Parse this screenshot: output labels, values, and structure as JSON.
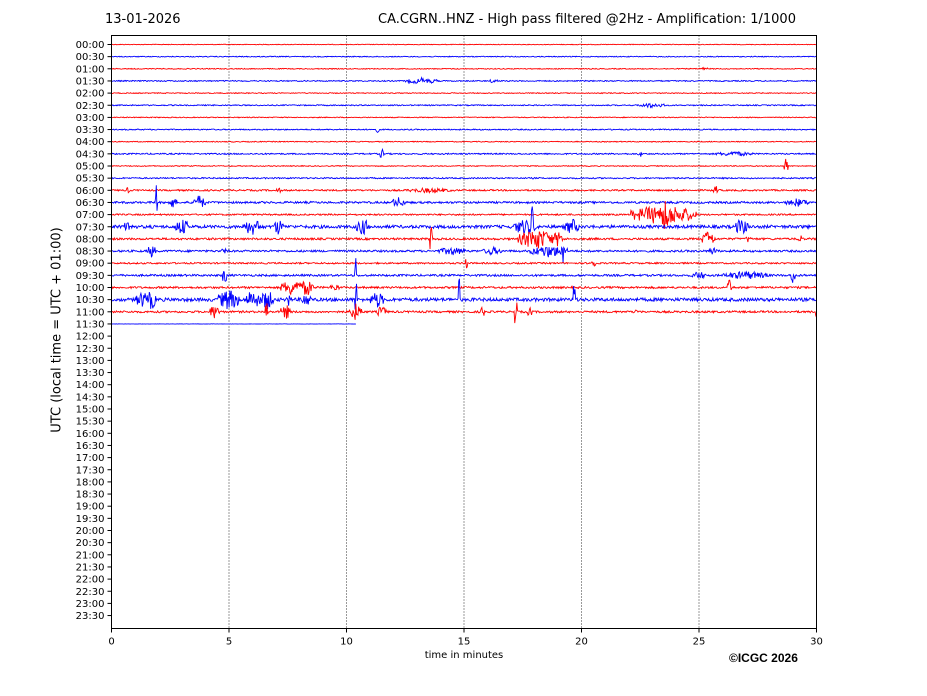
{
  "header": {
    "date": "13-01-2026",
    "title": "CA.CGRN..HNZ - High pass filtered @2Hz - Amplification: 1/1000"
  },
  "footer": {
    "copyright": "©ICGC 2026"
  },
  "colors": {
    "odd_trace": "#ff0000",
    "even_trace": "#0000ff",
    "grid": "#000000"
  },
  "chart_data": {
    "type": "line",
    "title": "CA.CGRN..HNZ - High pass filtered @2Hz - Amplification: 1/1000",
    "xlabel": "time in minutes",
    "ylabel": "UTC (local time = UTC + 01:00)",
    "xlim": [
      0,
      30
    ],
    "x_ticks": [
      0,
      5,
      10,
      15,
      20,
      25,
      30
    ],
    "y_ticks": [
      "00:00",
      "00:30",
      "01:00",
      "01:30",
      "02:00",
      "02:30",
      "03:00",
      "03:30",
      "04:00",
      "04:30",
      "05:00",
      "05:30",
      "06:00",
      "06:30",
      "07:00",
      "07:30",
      "08:00",
      "08:30",
      "09:00",
      "09:30",
      "10:00",
      "10:30",
      "11:00",
      "11:30",
      "12:00",
      "12:30",
      "13:00",
      "13:30",
      "14:00",
      "14:30",
      "15:00",
      "15:30",
      "16:00",
      "16:30",
      "17:00",
      "17:30",
      "18:00",
      "18:30",
      "19:00",
      "19:30",
      "20:00",
      "20:30",
      "21:00",
      "21:30",
      "22:00",
      "22:30",
      "23:00",
      "23:30"
    ],
    "grid": "vertical dotted lines at x ticks",
    "traces": [
      {
        "row": "00:00",
        "color": "red",
        "end": 30,
        "noise": 0.15,
        "events": []
      },
      {
        "row": "00:30",
        "color": "blue",
        "end": 30,
        "noise": 0.2,
        "events": []
      },
      {
        "row": "01:00",
        "color": "red",
        "end": 30,
        "noise": 0.2,
        "events": [
          [
            25.2,
            0.6,
            0.3
          ]
        ]
      },
      {
        "row": "01:30",
        "color": "blue",
        "end": 30,
        "noise": 0.25,
        "events": [
          [
            13.2,
            1.5,
            0.7
          ],
          [
            16.3,
            1.2,
            0.2
          ]
        ]
      },
      {
        "row": "02:00",
        "color": "red",
        "end": 30,
        "noise": 0.2,
        "events": []
      },
      {
        "row": "02:30",
        "color": "blue",
        "end": 30,
        "noise": 0.25,
        "events": [
          [
            23,
            1.2,
            0.6
          ]
        ]
      },
      {
        "row": "03:00",
        "color": "red",
        "end": 30,
        "noise": 0.2,
        "events": []
      },
      {
        "row": "03:30",
        "color": "blue",
        "end": 30,
        "noise": 0.25,
        "events": [
          [
            11.3,
            1.5,
            0.1
          ]
        ]
      },
      {
        "row": "04:00",
        "color": "red",
        "end": 30,
        "noise": 0.2,
        "events": []
      },
      {
        "row": "04:30",
        "color": "blue",
        "end": 30,
        "noise": 0.3,
        "events": [
          [
            11.5,
            2.5,
            0.1
          ],
          [
            22.5,
            1.5,
            0.1
          ],
          [
            26.5,
            1.2,
            0.8
          ]
        ]
      },
      {
        "row": "05:00",
        "color": "red",
        "end": 30,
        "noise": 0.2,
        "events": [
          [
            28.7,
            4,
            0.1
          ]
        ]
      },
      {
        "row": "05:30",
        "color": "blue",
        "end": 30,
        "noise": 0.3,
        "events": []
      },
      {
        "row": "06:00",
        "color": "red",
        "end": 30,
        "noise": 0.35,
        "events": [
          [
            0.7,
            1.5,
            0.1
          ],
          [
            7.1,
            1.8,
            0.1
          ],
          [
            13.5,
            1.2,
            1
          ],
          [
            25.7,
            2.5,
            0.1
          ]
        ]
      },
      {
        "row": "06:30",
        "color": "blue",
        "end": 30,
        "noise": 0.45,
        "events": [
          [
            1.9,
            14,
            0.05
          ],
          [
            2.6,
            2.5,
            0.2
          ],
          [
            3.7,
            3.5,
            0.3
          ],
          [
            12.2,
            2.5,
            0.3
          ],
          [
            29.2,
            2,
            0.5
          ]
        ]
      },
      {
        "row": "07:00",
        "color": "red",
        "end": 30,
        "noise": 0.35,
        "events": [
          [
            23.6,
            10,
            0.15
          ],
          [
            23.5,
            5,
            1.4
          ]
        ]
      },
      {
        "row": "07:30",
        "color": "blue",
        "end": 30,
        "noise": 0.7,
        "events": [
          [
            0.7,
            3,
            0.2
          ],
          [
            3,
            4,
            0.3
          ],
          [
            6,
            4,
            0.4
          ],
          [
            7.1,
            4,
            0.2
          ],
          [
            10.7,
            4,
            0.3
          ],
          [
            17.6,
            4,
            0.5
          ],
          [
            17.9,
            14,
            0.05
          ],
          [
            19.6,
            4,
            0.3
          ],
          [
            26.8,
            4,
            0.3
          ]
        ]
      },
      {
        "row": "08:00",
        "color": "red",
        "end": 30,
        "noise": 0.45,
        "events": [
          [
            13.6,
            13,
            0.05
          ],
          [
            17.7,
            4,
            0.2
          ],
          [
            18.1,
            5,
            0.8
          ],
          [
            19,
            4,
            0.2
          ],
          [
            25.4,
            4,
            0.3
          ],
          [
            27.1,
            2,
            0.1
          ],
          [
            29.3,
            5,
            0.05
          ]
        ]
      },
      {
        "row": "08:30",
        "color": "blue",
        "end": 30,
        "noise": 0.45,
        "events": [
          [
            1.7,
            3,
            0.2
          ],
          [
            4.8,
            2,
            0.1
          ],
          [
            14.5,
            2,
            0.6
          ],
          [
            16.2,
            2,
            0.4
          ],
          [
            18.6,
            3,
            0.8
          ],
          [
            19.2,
            7,
            0.1
          ],
          [
            25.6,
            2,
            0.2
          ]
        ]
      },
      {
        "row": "09:00",
        "color": "red",
        "end": 30,
        "noise": 0.35,
        "events": [
          [
            15.1,
            9,
            0.05
          ],
          [
            20.5,
            2,
            0.2
          ]
        ]
      },
      {
        "row": "09:30",
        "color": "blue",
        "end": 30,
        "noise": 0.45,
        "events": [
          [
            4.8,
            5,
            0.1
          ],
          [
            10.4,
            12,
            0.05
          ],
          [
            25,
            2,
            0.3
          ],
          [
            29,
            5,
            0.1
          ],
          [
            27,
            2,
            1
          ]
        ]
      },
      {
        "row": "10:00",
        "color": "red",
        "end": 30,
        "noise": 0.45,
        "events": [
          [
            7.7,
            4,
            0.5
          ],
          [
            8.3,
            4,
            0.3
          ],
          [
            26.3,
            4,
            0.1
          ],
          [
            9.5,
            2,
            0.2
          ]
        ]
      },
      {
        "row": "10:30",
        "color": "blue",
        "end": 30,
        "noise": 0.75,
        "events": [
          [
            1.3,
            4,
            0.3
          ],
          [
            1.7,
            5,
            0.2
          ],
          [
            5,
            5,
            0.5
          ],
          [
            6,
            5,
            0.3
          ],
          [
            6.6,
            5,
            0.3
          ],
          [
            7.5,
            4,
            0.1
          ],
          [
            8.3,
            4,
            0.2
          ],
          [
            10.4,
            14,
            0.05
          ],
          [
            11.3,
            4,
            0.3
          ],
          [
            14.8,
            12,
            0.05
          ],
          [
            19.7,
            14,
            0.05
          ]
        ]
      },
      {
        "row": "11:00",
        "color": "red",
        "end": 30,
        "noise": 0.45,
        "events": [
          [
            4.4,
            4,
            0.2
          ],
          [
            6.6,
            9,
            0.05
          ],
          [
            7.4,
            4,
            0.2
          ],
          [
            10.4,
            4,
            0.3
          ],
          [
            11.5,
            3,
            0.2
          ],
          [
            15.8,
            3,
            0.1
          ],
          [
            17.2,
            14,
            0.05
          ],
          [
            17.8,
            3,
            0.1
          ],
          [
            22.3,
            2,
            0.1
          ],
          [
            30,
            3,
            0.05
          ]
        ]
      },
      {
        "row": "11:30",
        "color": "blue",
        "end": 10.4,
        "noise": 0.05,
        "events": []
      }
    ]
  }
}
